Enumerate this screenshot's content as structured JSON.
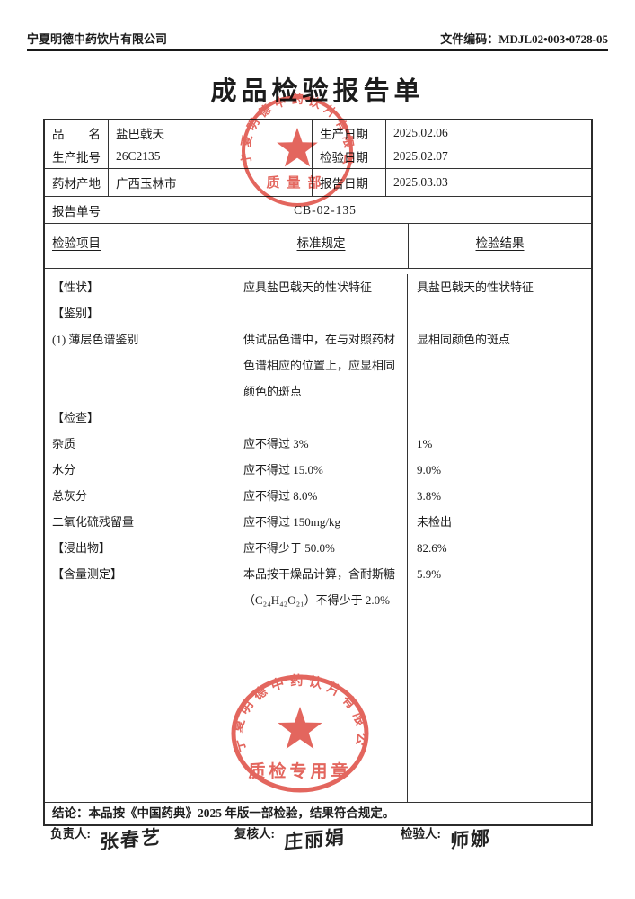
{
  "page": {
    "company": "宁夏明德中药饮片有限公司",
    "doc_code_label": "文件编码：",
    "doc_code": "MDJL02•003•0728-05",
    "title": "成品检验报告单"
  },
  "info": {
    "rows": [
      {
        "l": "品　　名",
        "v": "盐巴戟天",
        "l2": "生产日期",
        "v2": "2025.02.06"
      },
      {
        "l": "生产批号",
        "v": "26C2135",
        "l2": "检验日期",
        "v2": "2025.02.07"
      },
      {
        "l": "药材产地",
        "v": "广西玉林市",
        "l2": "报告日期",
        "v2": "2025.03.03"
      }
    ],
    "report_no_label": "报告单号",
    "report_no": "CB-02-135"
  },
  "table": {
    "headers": [
      "检验项目",
      "标准规定",
      "检验结果"
    ],
    "rows": [
      {
        "item": "【性状】",
        "standard": "应具盐巴戟天的性状特征",
        "result": "具盐巴戟天的性状特征"
      },
      {
        "item": "【鉴别】",
        "standard": "",
        "result": ""
      },
      {
        "item": "(1) 薄层色谱鉴别",
        "standard": "供试品色谱中，在与对照药材色谱相应的位置上，应显相同颜色的斑点",
        "result": "显相同颜色的斑点"
      },
      {
        "item": "【检查】",
        "standard": "",
        "result": ""
      },
      {
        "item": "杂质",
        "standard": "应不得过 3%",
        "result": "1%"
      },
      {
        "item": "水分",
        "standard": "应不得过 15.0%",
        "result": "9.0%"
      },
      {
        "item": "总灰分",
        "standard": "应不得过 8.0%",
        "result": "3.8%"
      },
      {
        "item": "二氧化硫残留量",
        "standard": "应不得过 150mg/kg",
        "result": "未检出"
      },
      {
        "item": "【浸出物】",
        "standard": "应不得少于 50.0%",
        "result": "82.6%"
      },
      {
        "item": "【含量测定】",
        "standard": "本品按干燥品计算，含耐斯糖（C₂₄H₄₂O₂₁）不得少于 2.0%",
        "result": "5.9%"
      }
    ]
  },
  "conclusion": "结论：本品按《中国药典》2025 年版一部检验，结果符合规定。",
  "signatures": {
    "lead_label": "负责人:",
    "lead_name": "张春艺",
    "review_label": "复核人:",
    "review_name": "庄丽娟",
    "inspector_label": "检验人:",
    "inspector_name": "师娜"
  },
  "stamps": {
    "company": "宁夏明德中药饮片有限公司",
    "top_caption": "质量部",
    "bottom_caption": "质检专用章"
  },
  "colors": {
    "stamp_red": "#de4b42",
    "ink": "#1c1c1c",
    "border": "#333333"
  }
}
